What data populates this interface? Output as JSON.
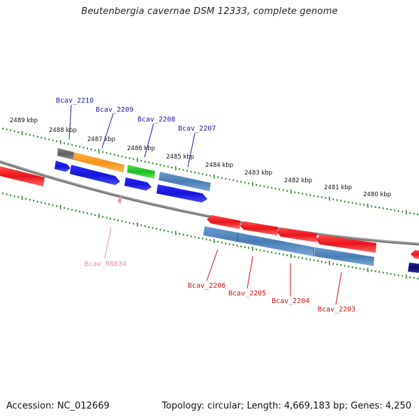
{
  "title": "Beutenbergia cavernae DSM 12333, complete genome",
  "footer": {
    "accession": "Accession: NC_012669",
    "stats": "Topology: circular; Length: 4,669,183 bp; Genes: 4,250"
  },
  "scale_labels": [
    "2489 kbp",
    "2488 kbp",
    "2487 kbp",
    "2486 kbp",
    "2485 kbp",
    "2484 kbp",
    "2483 kbp",
    "2482 kbp",
    "2481 kbp",
    "2480 kbp"
  ],
  "gene_labels_top": [
    "Bcav_2210",
    "Bcav_2209",
    "Bcav_2208",
    "Bcav_2207"
  ],
  "gene_labels_bottom": [
    "Bcav_2206",
    "Bcav_2205",
    "Bcav_2204",
    "Bcav_2203"
  ],
  "rna_label": "Bcav_R0034",
  "colors": {
    "cds": "#e8141b",
    "blue": "#1a1ae0",
    "steel": "#4f83b8",
    "orange": "#f59a1b",
    "green": "#2cc42c",
    "gray": "#707070",
    "navy": "#10106a",
    "ticks": "#1e8a1e",
    "top_labels": "#1c1ca8",
    "bottom_labels": "#cc1111",
    "rna": "#f08bb5"
  }
}
